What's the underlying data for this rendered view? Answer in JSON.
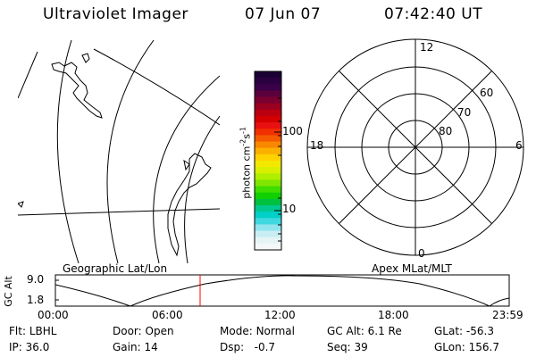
{
  "header": {
    "title": "Ultraviolet Imager",
    "date": "07 Jun 07",
    "time": "07:42:40 UT"
  },
  "colorbar": {
    "label": "photon cm",
    "label_exp": "-2",
    "label_s": "s",
    "label_s_exp": "-1",
    "ticks": [
      "100",
      "10"
    ],
    "colors": [
      "#1a0033",
      "#2a0040",
      "#3a0048",
      "#5a003c",
      "#7a0030",
      "#9a0020",
      "#bb0010",
      "#d40000",
      "#e81010",
      "#f03000",
      "#f55a00",
      "#f88800",
      "#fbb000",
      "#fdd200",
      "#f4e800",
      "#d8f000",
      "#b0ee00",
      "#80e600",
      "#40dd00",
      "#10d000",
      "#00c040",
      "#00c890",
      "#00d0c8",
      "#40d8e0",
      "#90e4ee",
      "#c8eef4",
      "#e6f4f6",
      "#f4f8f8"
    ]
  },
  "geo_panel": {
    "label": "Geographic Lat/Lon"
  },
  "polar_panel": {
    "label": "Apex MLat/MLT",
    "mlt_labels": {
      "top": "12",
      "left": "18",
      "right": "6",
      "bottom": "0"
    },
    "lat_labels": [
      "60",
      "70",
      "80"
    ]
  },
  "gc_alt_plot": {
    "ylabel": "GC Alt",
    "yticks": [
      "9.0",
      "1.8"
    ],
    "xticks": [
      "00:00",
      "06:00",
      "12:00",
      "18:00",
      "23:59"
    ],
    "marker_time": "07:42",
    "marker_color": "#ff0000"
  },
  "status": {
    "row1": [
      {
        "label": "Flt:",
        "value": "LBHL"
      },
      {
        "label": "Door:",
        "value": "Open"
      },
      {
        "label": "Mode:",
        "value": "Normal"
      },
      {
        "label": "GC Alt:",
        "value": "6.1 Re"
      },
      {
        "label": "GLat:",
        "value": "-56.3"
      }
    ],
    "row2": [
      {
        "label": "IP:",
        "value": "36.0"
      },
      {
        "label": "Gain:",
        "value": "14"
      },
      {
        "label": "Dsp:",
        "value": "-0.7"
      },
      {
        "label": "Seq:",
        "value": "39"
      },
      {
        "label": "GLon:",
        "value": "156.7"
      }
    ]
  }
}
